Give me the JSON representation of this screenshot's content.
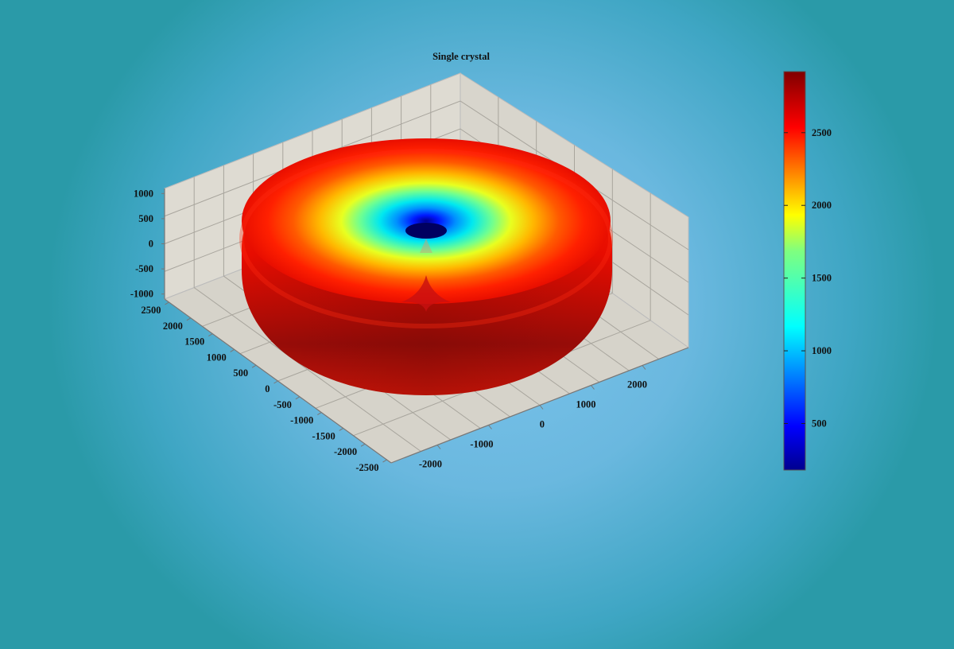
{
  "chart_data": {
    "type": "surface3d",
    "title": "Single crystal",
    "xlabel": "",
    "ylabel": "",
    "zlabel": "",
    "x_ticks": [
      "-2000",
      "-1000",
      "0",
      "1000",
      "2000"
    ],
    "y_ticks": [
      "2500",
      "2000",
      "1500",
      "1000",
      "500",
      "0",
      "-500",
      "-1000",
      "-1500",
      "-2000",
      "-2500"
    ],
    "z_ticks": [
      "1000",
      "500",
      "0",
      "-500",
      "-1000"
    ],
    "xlim": [
      -2900,
      2900
    ],
    "ylim": [
      -2600,
      2600
    ],
    "zlim": [
      -1100,
      1100
    ],
    "surface": "torus-like closed surface, max radius ~2900, colored by radius",
    "colorbar": {
      "colormap": "jet",
      "range": [
        180,
        2920
      ],
      "ticks": [
        "2500",
        "2000",
        "1500",
        "1000",
        "500"
      ]
    },
    "grid": true
  }
}
